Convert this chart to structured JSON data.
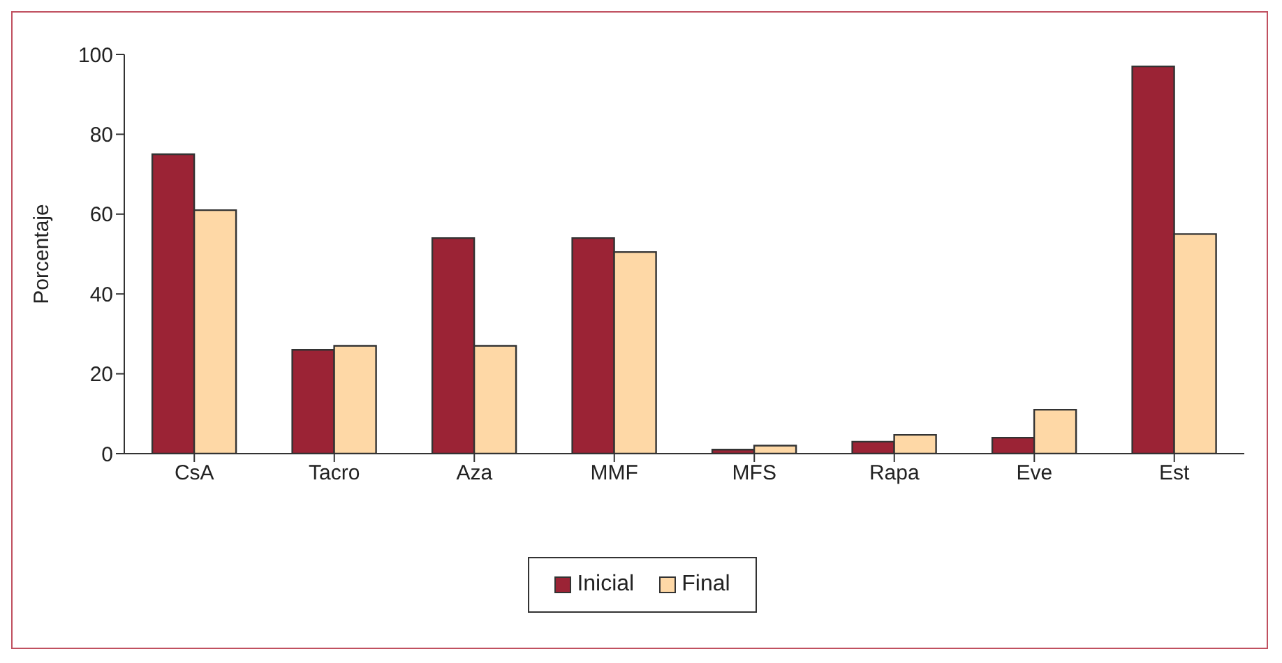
{
  "chart_data": {
    "type": "bar",
    "ylabel": "Porcentaje",
    "categories": [
      "CsA",
      "Tacro",
      "Aza",
      "MMF",
      "MFS",
      "Rapa",
      "Eve",
      "Est"
    ],
    "series": [
      {
        "name": "Inicial",
        "color": "#9b2335",
        "values": [
          75,
          26,
          54,
          54,
          1,
          3,
          4,
          97
        ]
      },
      {
        "name": "Final",
        "color": "#fed8a6",
        "values": [
          61,
          27,
          27,
          50.5,
          2,
          4.7,
          11,
          55
        ]
      }
    ],
    "ylim": [
      0,
      100
    ],
    "yticks": [
      0,
      20,
      40,
      60,
      80,
      100
    ],
    "grid": false,
    "legend": "bottom"
  }
}
